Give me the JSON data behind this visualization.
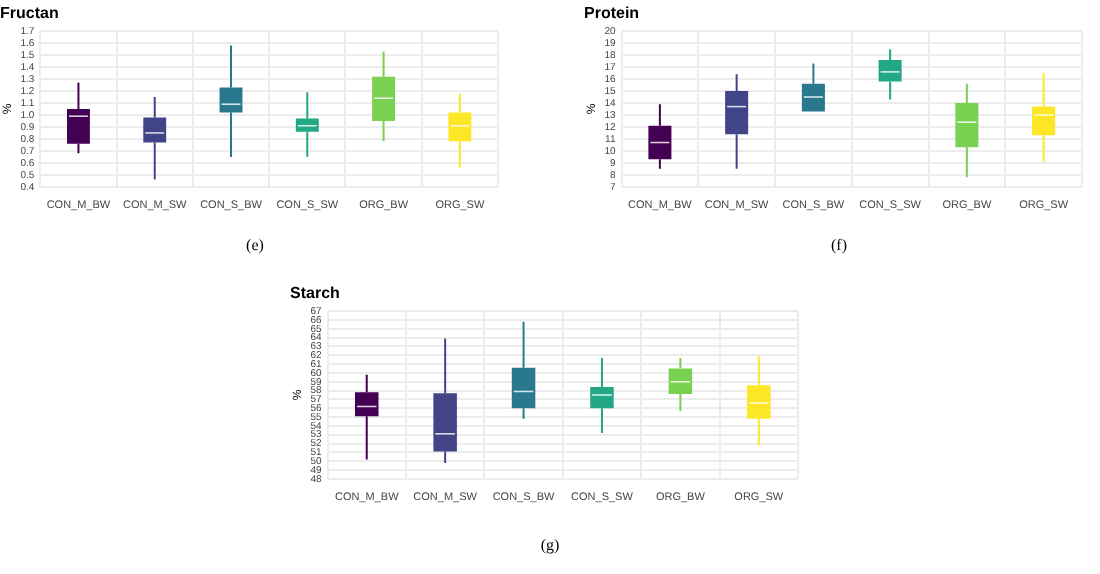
{
  "chart_data": [
    {
      "type": "box",
      "title": "Fructan",
      "ylabel": "%",
      "categories": [
        "CON_M_BW",
        "CON_M_SW",
        "CON_S_BW",
        "CON_S_SW",
        "ORG_BW",
        "ORG_SW"
      ],
      "colors": [
        "#440154",
        "#414487",
        "#2a788e",
        "#22a884",
        "#7ad151",
        "#fde725"
      ],
      "ylim": [
        0.4,
        1.7
      ],
      "yticks": [
        0.4,
        0.5,
        0.6,
        0.7,
        0.8,
        0.9,
        {
          "value": 1,
          "label": "1.0"
        },
        1.1,
        1.2,
        1.3,
        1.4,
        1.5,
        1.6,
        1.7
      ],
      "grid": true,
      "annotations": [
        "(e)"
      ],
      "boxes": [
        {
          "low": 0.68,
          "q1": 0.76,
          "median": 0.99,
          "q3": 1.05,
          "high": 1.27
        },
        {
          "low": 0.46,
          "q1": 0.77,
          "median": 0.85,
          "q3": 0.98,
          "high": 1.15
        },
        {
          "low": 0.65,
          "q1": 1.02,
          "median": 1.09,
          "q3": 1.23,
          "high": 1.58
        },
        {
          "low": 0.65,
          "q1": 0.86,
          "median": 0.91,
          "q3": 0.97,
          "high": 1.19
        },
        {
          "low": 0.78,
          "q1": 0.95,
          "median": 1.14,
          "q3": 1.32,
          "high": 1.53
        },
        {
          "low": 0.56,
          "q1": 0.78,
          "median": 0.91,
          "q3": 1.02,
          "high": 1.18
        }
      ]
    },
    {
      "type": "box",
      "title": "Protein",
      "ylabel": "%",
      "categories": [
        "CON_M_BW",
        "CON_M_SW",
        "CON_S_BW",
        "CON_S_SW",
        "ORG_BW",
        "ORG_SW"
      ],
      "colors": [
        "#440154",
        "#414487",
        "#2a788e",
        "#22a884",
        "#7ad151",
        "#fde725"
      ],
      "ylim": [
        7,
        20
      ],
      "yticks": [
        7,
        8,
        9,
        10,
        11,
        12,
        13,
        14,
        15,
        16,
        17,
        18,
        19,
        20
      ],
      "grid": true,
      "annotations": [
        "(f)"
      ],
      "boxes": [
        {
          "low": 8.5,
          "q1": 9.3,
          "median": 10.7,
          "q3": 12.1,
          "high": 13.9
        },
        {
          "low": 8.5,
          "q1": 11.4,
          "median": 13.7,
          "q3": 15,
          "high": 16.4
        },
        {
          "low": 13.3,
          "q1": 13.3,
          "median": 14.5,
          "q3": 15.6,
          "high": 17.3
        },
        {
          "low": 14.3,
          "q1": 15.8,
          "median": 16.6,
          "q3": 17.6,
          "high": 18.5
        },
        {
          "low": 7.8,
          "q1": 10.3,
          "median": 12.4,
          "q3": 14,
          "high": 15.6
        },
        {
          "low": 9.1,
          "q1": 11.3,
          "median": 13,
          "q3": 13.7,
          "high": 16.5
        }
      ]
    },
    {
      "type": "box",
      "title": "Starch",
      "ylabel": "%",
      "categories": [
        "CON_M_BW",
        "CON_M_SW",
        "CON_S_BW",
        "CON_S_SW",
        "ORG_BW",
        "ORG_SW"
      ],
      "colors": [
        "#440154",
        "#414487",
        "#2a788e",
        "#22a884",
        "#7ad151",
        "#fde725"
      ],
      "ylim": [
        48,
        67
      ],
      "yticks": [
        48,
        49,
        50,
        51,
        52,
        53,
        54,
        55,
        56,
        57,
        58,
        59,
        60,
        61,
        62,
        63,
        64,
        65,
        66,
        67
      ],
      "grid": true,
      "annotations": [
        "(g)"
      ],
      "boxes": [
        {
          "low": 50.2,
          "q1": 55.1,
          "median": 56.2,
          "q3": 57.8,
          "high": 59.8
        },
        {
          "low": 49.8,
          "q1": 51.1,
          "median": 53.1,
          "q3": 57.7,
          "high": 63.9
        },
        {
          "low": 54.8,
          "q1": 56,
          "median": 57.9,
          "q3": 60.6,
          "high": 65.8
        },
        {
          "low": 53.2,
          "q1": 56,
          "median": 57.5,
          "q3": 58.4,
          "high": 61.7
        },
        {
          "low": 55.7,
          "q1": 57.6,
          "median": 59,
          "q3": 60.5,
          "high": 61.7
        },
        {
          "low": 51.8,
          "q1": 54.8,
          "median": 56.6,
          "q3": 58.6,
          "high": 61.9
        }
      ]
    }
  ]
}
